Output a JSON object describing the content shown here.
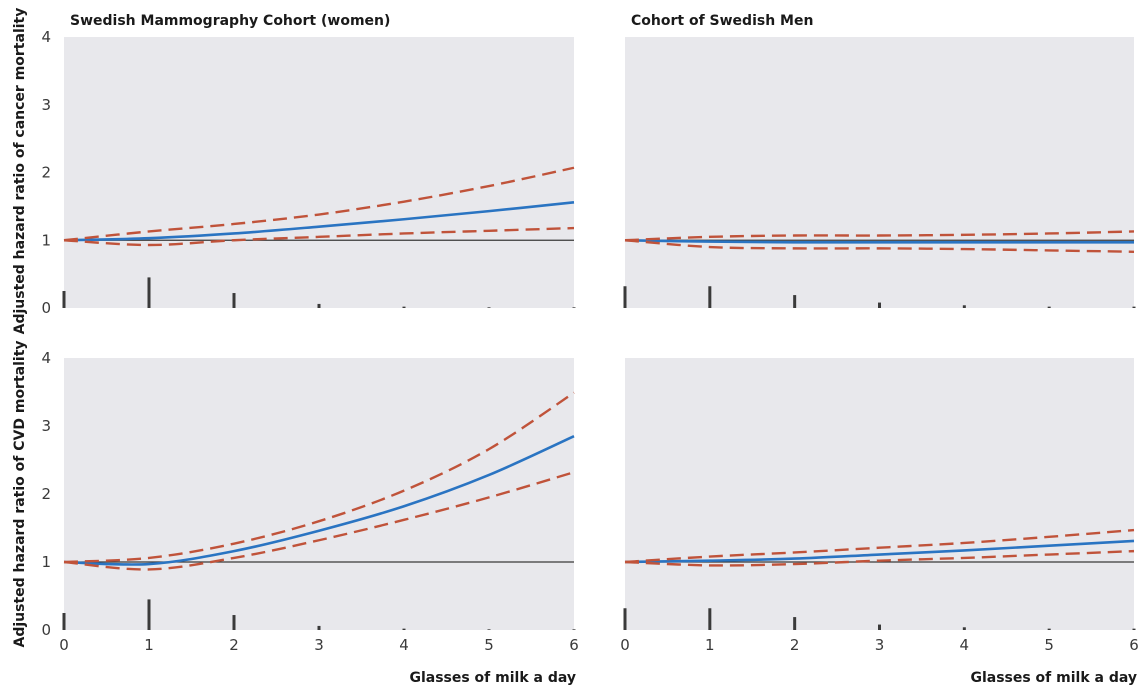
{
  "figure": {
    "xlabel": "Glasses of milk a day",
    "row_labels": [
      "Adjusted hazard ratio of cancer mortality",
      "Adjusted hazard ratio of CVD mortality"
    ],
    "column_titles": [
      "Swedish Mammography Cohort (women)",
      "Cohort of Swedish Men"
    ],
    "colors": {
      "panel_background": "#e8e8ec",
      "estimate": "#2a74c2",
      "confidence_interval": "#c0533a",
      "reference_line": "#3a3a3a",
      "histogram": "#3a3a3a"
    }
  },
  "chart_data": [
    {
      "type": "line",
      "title": "Swedish Mammography Cohort (women)",
      "ylabel": "Adjusted hazard ratio of cancer mortality",
      "xlabel": "",
      "xlim": [
        0,
        6
      ],
      "ylim": [
        0,
        4
      ],
      "x_ticks": [
        0,
        1,
        2,
        3,
        4,
        5,
        6
      ],
      "y_ticks": [
        0,
        1,
        2,
        3,
        4
      ],
      "grid": false,
      "reference_line": 1,
      "x": [
        0,
        1,
        2,
        3,
        4,
        5,
        6
      ],
      "series": [
        {
          "role": "estimate",
          "values": [
            1.0,
            1.03,
            1.1,
            1.2,
            1.31,
            1.43,
            1.56
          ]
        },
        {
          "role": "upper_ci",
          "values": [
            1.0,
            1.13,
            1.24,
            1.38,
            1.57,
            1.8,
            2.07
          ]
        },
        {
          "role": "lower_ci",
          "values": [
            1.0,
            0.93,
            1.0,
            1.05,
            1.1,
            1.14,
            1.18
          ]
        }
      ],
      "distribution": {
        "x": [
          0,
          1,
          2,
          3,
          4,
          5,
          6
        ],
        "values": [
          0.25,
          0.45,
          0.22,
          0.06,
          0.02,
          0.01,
          0.01
        ]
      }
    },
    {
      "type": "line",
      "title": "Cohort of Swedish Men",
      "ylabel": "",
      "xlabel": "",
      "xlim": [
        0,
        6
      ],
      "ylim": [
        0,
        4
      ],
      "x_ticks": [
        0,
        1,
        2,
        3,
        4,
        5,
        6
      ],
      "y_ticks": [
        0,
        1,
        2,
        3,
        4
      ],
      "grid": false,
      "reference_line": 1,
      "x": [
        0,
        1,
        2,
        3,
        4,
        5,
        6
      ],
      "series": [
        {
          "role": "estimate",
          "values": [
            1.0,
            0.98,
            0.97,
            0.97,
            0.97,
            0.97,
            0.97
          ]
        },
        {
          "role": "upper_ci",
          "values": [
            1.0,
            1.05,
            1.07,
            1.07,
            1.08,
            1.1,
            1.13
          ]
        },
        {
          "role": "lower_ci",
          "values": [
            1.0,
            0.9,
            0.88,
            0.88,
            0.87,
            0.85,
            0.83
          ]
        }
      ],
      "distribution": {
        "x": [
          0,
          1,
          2,
          3,
          4,
          5,
          6
        ],
        "values": [
          0.32,
          0.32,
          0.19,
          0.08,
          0.04,
          0.02,
          0.02
        ]
      }
    },
    {
      "type": "line",
      "title": "",
      "ylabel": "Adjusted hazard ratio of CVD mortality",
      "xlabel": "Glasses of milk a day",
      "xlim": [
        0,
        6
      ],
      "ylim": [
        0,
        4
      ],
      "x_ticks": [
        0,
        1,
        2,
        3,
        4,
        5,
        6
      ],
      "y_ticks": [
        0,
        1,
        2,
        3,
        4
      ],
      "grid": false,
      "reference_line": 1,
      "x": [
        0,
        1,
        2,
        3,
        4,
        5,
        6
      ],
      "series": [
        {
          "role": "estimate",
          "values": [
            1.0,
            0.97,
            1.16,
            1.46,
            1.82,
            2.28,
            2.85
          ]
        },
        {
          "role": "upper_ci",
          "values": [
            1.0,
            1.06,
            1.27,
            1.6,
            2.05,
            2.66,
            3.49
          ]
        },
        {
          "role": "lower_ci",
          "values": [
            1.0,
            0.89,
            1.06,
            1.32,
            1.62,
            1.95,
            2.32
          ]
        }
      ],
      "distribution": {
        "x": [
          0,
          1,
          2,
          3,
          4,
          5,
          6
        ],
        "values": [
          0.25,
          0.45,
          0.22,
          0.06,
          0.02,
          0.01,
          0.01
        ]
      }
    },
    {
      "type": "line",
      "title": "",
      "ylabel": "",
      "xlabel": "Glasses of milk a day",
      "xlim": [
        0,
        6
      ],
      "ylim": [
        0,
        4
      ],
      "x_ticks": [
        0,
        1,
        2,
        3,
        4,
        5,
        6
      ],
      "y_ticks": [
        0,
        1,
        2,
        3,
        4
      ],
      "grid": false,
      "reference_line": 1,
      "x": [
        0,
        1,
        2,
        3,
        4,
        5,
        6
      ],
      "series": [
        {
          "role": "estimate",
          "values": [
            1.0,
            1.02,
            1.05,
            1.11,
            1.17,
            1.24,
            1.31
          ]
        },
        {
          "role": "upper_ci",
          "values": [
            1.0,
            1.08,
            1.14,
            1.21,
            1.28,
            1.37,
            1.47
          ]
        },
        {
          "role": "lower_ci",
          "values": [
            1.0,
            0.95,
            0.97,
            1.02,
            1.06,
            1.11,
            1.16
          ]
        }
      ],
      "distribution": {
        "x": [
          0,
          1,
          2,
          3,
          4,
          5,
          6
        ],
        "values": [
          0.32,
          0.32,
          0.19,
          0.08,
          0.04,
          0.02,
          0.02
        ]
      }
    }
  ]
}
